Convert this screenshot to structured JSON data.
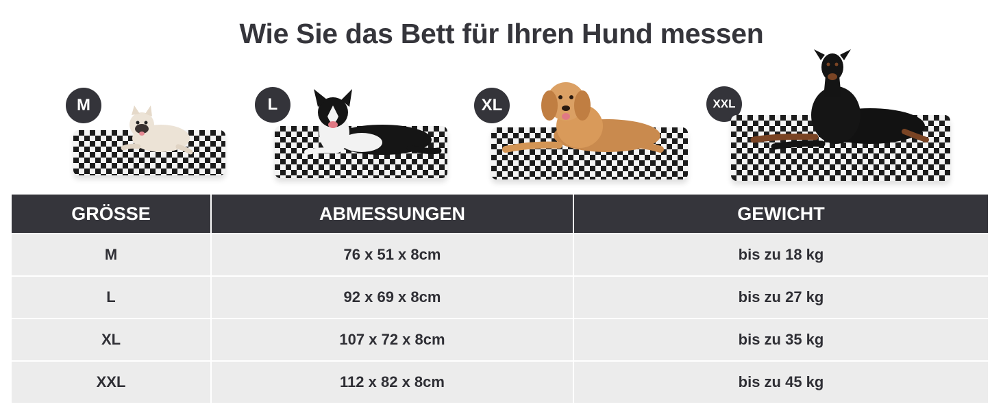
{
  "title": "Wie Sie das Bett für Ihren Hund messen",
  "products": [
    {
      "badge": "M",
      "dog": "french-bulldog"
    },
    {
      "badge": "L",
      "dog": "border-collie"
    },
    {
      "badge": "XL",
      "dog": "golden-retriever"
    },
    {
      "badge": "XXL",
      "dog": "doberman"
    }
  ],
  "table": {
    "headers": [
      "GRÖSSE",
      "ABMESSUNGEN",
      "GEWICHT"
    ],
    "rows": [
      {
        "size": "M",
        "dimensions": "76 x 51 x 8cm",
        "weight": "bis zu 18 kg"
      },
      {
        "size": "L",
        "dimensions": "92 x 69 x 8cm",
        "weight": "bis zu 27 kg"
      },
      {
        "size": "XL",
        "dimensions": "107 x 72 x 8cm",
        "weight": "bis zu 35 kg"
      },
      {
        "size": "XXL",
        "dimensions": "112 x 82 x 8cm",
        "weight": "bis zu 45 kg"
      }
    ]
  },
  "colors": {
    "dark": "#35353b",
    "row_bg": "#ececec"
  }
}
